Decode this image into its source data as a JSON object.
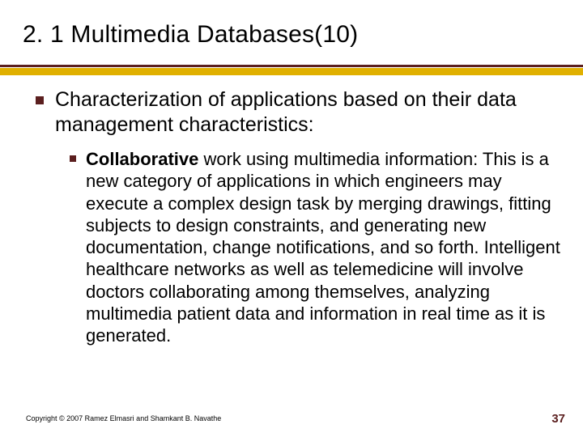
{
  "title": "2. 1 Multimedia Databases(10)",
  "colors": {
    "accent": "#5b1f1f",
    "gold": "#e0b000",
    "text": "#000000",
    "background": "#ffffff"
  },
  "typography": {
    "title_fontsize": 30,
    "lvl1_fontsize": 25,
    "lvl2_fontsize": 22,
    "copyright_fontsize": 9,
    "pagenum_fontsize": 15,
    "font_family": "Arial"
  },
  "bullets": {
    "lvl1": {
      "text": "Characterization of applications based on their data management characteristics:"
    },
    "lvl2": {
      "bold_lead": "Collaborative",
      "rest": " work using multimedia information: This is a new category of applications in which engineers may execute a complex design task by merging drawings, fitting subjects to design constraints, and generating new documentation, change notifications, and so forth. Intelligent healthcare networks as well as telemedicine will involve doctors collaborating among themselves, analyzing multimedia patient data and information in real time as it is generated."
    }
  },
  "copyright": "Copyright © 2007 Ramez Elmasri and Shamkant B. Navathe",
  "page_number": "37"
}
